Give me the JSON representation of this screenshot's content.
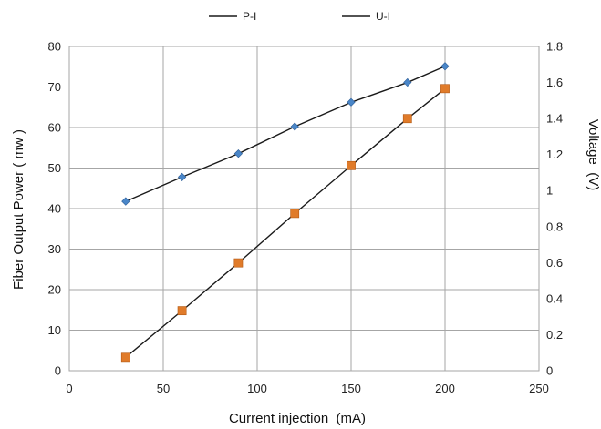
{
  "chart_data": {
    "type": "line",
    "title": "",
    "xlabel": "Current injection  (mA)",
    "ylabel": "Fiber Output Power ( mw )",
    "y2label": "Voltage  (V)",
    "xlim": [
      0,
      250
    ],
    "ylim": [
      0,
      80
    ],
    "y2lim": [
      0,
      1.8
    ],
    "x_ticks": [
      "0",
      "50",
      "100",
      "150",
      "200",
      "250"
    ],
    "y_ticks": [
      "0",
      "10",
      "20",
      "30",
      "40",
      "50",
      "60",
      "70",
      "80"
    ],
    "y2_ticks": [
      "0",
      "0.2",
      "0.4",
      "0.6",
      "0.8",
      "1",
      "1.2",
      "1.4",
      "1.6",
      "1.8"
    ],
    "grid": true,
    "legend_position": "top-center",
    "series": [
      {
        "name": "P-I",
        "axis": "right",
        "marker": "diamond",
        "marker_color": "#4a86c8",
        "line_color": "#1a1a1a",
        "x": [
          30,
          60,
          90,
          120,
          150,
          180,
          200
        ],
        "y": [
          0.94,
          1.075,
          1.205,
          1.355,
          1.49,
          1.6,
          1.69
        ]
      },
      {
        "name": "U-I",
        "axis": "left",
        "marker": "square",
        "marker_color": "#e07b2a",
        "line_color": "#1a1a1a",
        "x": [
          30,
          60,
          90,
          120,
          150,
          180,
          200
        ],
        "y": [
          3.3,
          14.8,
          26.6,
          38.8,
          50.6,
          62.2,
          69.6
        ]
      }
    ]
  }
}
